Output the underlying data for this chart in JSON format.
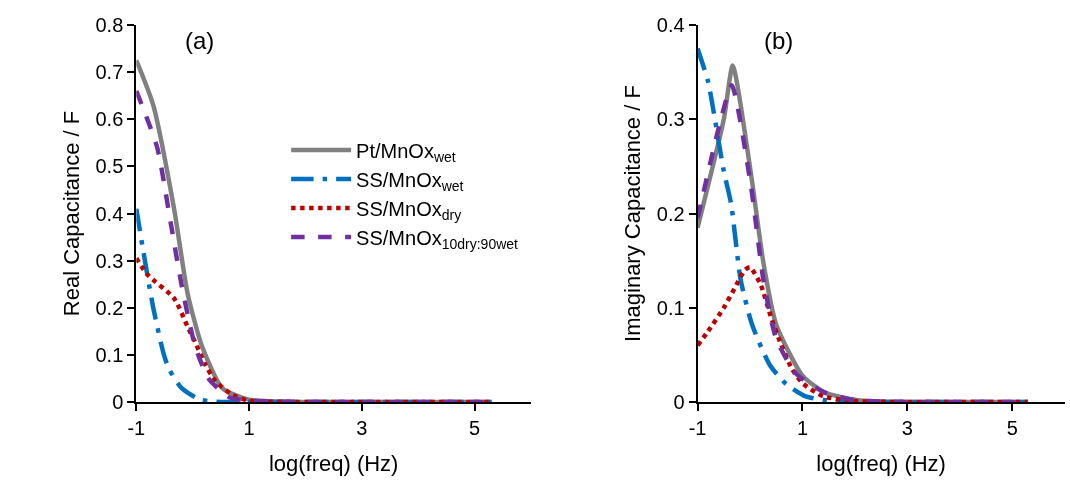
{
  "chart_data": [
    {
      "type": "line",
      "xlabel": "log(freq) (Hz)",
      "ylabel": "Real Capacitance / F",
      "annotations": [
        "(a)"
      ],
      "xlim": [
        -1,
        6
      ],
      "xticks": [
        -1,
        1,
        3,
        5
      ],
      "ylim": [
        0,
        0.8
      ],
      "yticks": [
        0,
        0.1,
        0.2,
        0.3,
        0.4,
        0.5,
        0.6,
        0.7,
        0.8
      ],
      "legend": "right",
      "marker": "none",
      "series": [
        {
          "name": "Pt/MnOx$_{wet}$",
          "color": "#808080",
          "line_style": "solid",
          "x": [
            -1,
            -0.7,
            -0.33,
            -0.09,
            0.16,
            0.52,
            1.0,
            2,
            3,
            4,
            5.3
          ],
          "values": [
            0.725,
            0.63,
            0.41,
            0.23,
            0.12,
            0.03,
            0.005,
            0,
            0,
            0,
            0
          ]
        },
        {
          "name": "SS/MnOx$_{wet}$",
          "color": "#0070c0",
          "line_style": "dashdot",
          "x": [
            -1,
            -0.89,
            -0.7,
            -0.51,
            -0.42,
            -0.2,
            0.13,
            0.5,
            1,
            2,
            3,
            4,
            5.3
          ],
          "values": [
            0.41,
            0.33,
            0.2,
            0.1,
            0.07,
            0.03,
            0.005,
            0,
            0,
            0,
            0,
            0,
            0
          ]
        },
        {
          "name": "SS/MnOx$_{dry}$",
          "color": "#c00000",
          "line_style": "dotted",
          "x": [
            -1,
            -0.8,
            -0.33,
            -0.09,
            0.07,
            0.22,
            0.4,
            0.7,
            1.0,
            2,
            3,
            4,
            5.3
          ],
          "values": [
            0.305,
            0.27,
            0.22,
            0.16,
            0.12,
            0.08,
            0.045,
            0.015,
            0.003,
            0,
            0,
            0,
            0
          ]
        },
        {
          "name": "SS/MnOx$_{10dry:90wet}$",
          "color": "#7030a0",
          "line_style": "dashed",
          "x": [
            -1,
            -0.63,
            -0.39,
            -0.2,
            0.04,
            0.28,
            0.65,
            1.0,
            2,
            3,
            4,
            5.3
          ],
          "values": [
            0.66,
            0.54,
            0.38,
            0.25,
            0.12,
            0.05,
            0.01,
            0.003,
            0,
            0,
            0,
            0
          ]
        }
      ]
    },
    {
      "type": "line",
      "xlabel": "log(freq) (Hz)",
      "ylabel": "Imaginary Capacitance / F",
      "annotations": [
        "(b)"
      ],
      "xlim": [
        -1,
        6
      ],
      "xticks": [
        -1,
        1,
        3,
        5
      ],
      "ylim": [
        0,
        0.4
      ],
      "yticks": [
        0,
        0.1,
        0.2,
        0.3,
        0.4
      ],
      "marker": "none",
      "series": [
        {
          "color": "#808080",
          "line_style": "solid",
          "x": [
            -1,
            -0.5,
            -0.33,
            0.01,
            0.26,
            0.5,
            1.0,
            1.43,
            2.05,
            3,
            4,
            5.3
          ],
          "values": [
            0.185,
            0.3,
            0.357,
            0.245,
            0.146,
            0.082,
            0.028,
            0.01,
            0.002,
            0,
            0,
            0
          ]
        },
        {
          "color": "#0070c0",
          "line_style": "dashdot",
          "x": [
            -1,
            -0.8,
            -0.7,
            -0.5,
            -0.36,
            -0.18,
            0.04,
            0.38,
            0.69,
            1.06,
            1.43,
            2,
            3,
            4,
            5.3
          ],
          "values": [
            0.375,
            0.34,
            0.31,
            0.245,
            0.21,
            0.13,
            0.082,
            0.039,
            0.019,
            0.006,
            0.002,
            0,
            0,
            0,
            0
          ]
        },
        {
          "color": "#c00000",
          "line_style": "dotted",
          "x": [
            -1,
            -0.8,
            -0.5,
            -0.3,
            -0.1,
            0,
            0.2,
            0.4,
            0.6,
            0.8,
            1.0,
            1.4,
            2,
            3,
            4,
            5.3
          ],
          "values": [
            0.06,
            0.075,
            0.1,
            0.12,
            0.14,
            0.143,
            0.125,
            0.09,
            0.06,
            0.035,
            0.02,
            0.006,
            0.001,
            0,
            0,
            0
          ]
        },
        {
          "color": "#7030a0",
          "line_style": "dashed",
          "x": [
            -1,
            -0.6,
            -0.35,
            0.01,
            0.26,
            0.5,
            0.88,
            1.43,
            2,
            3,
            4,
            5.3
          ],
          "values": [
            0.195,
            0.29,
            0.336,
            0.232,
            0.128,
            0.067,
            0.03,
            0.01,
            0.002,
            0,
            0,
            0
          ]
        }
      ]
    }
  ]
}
